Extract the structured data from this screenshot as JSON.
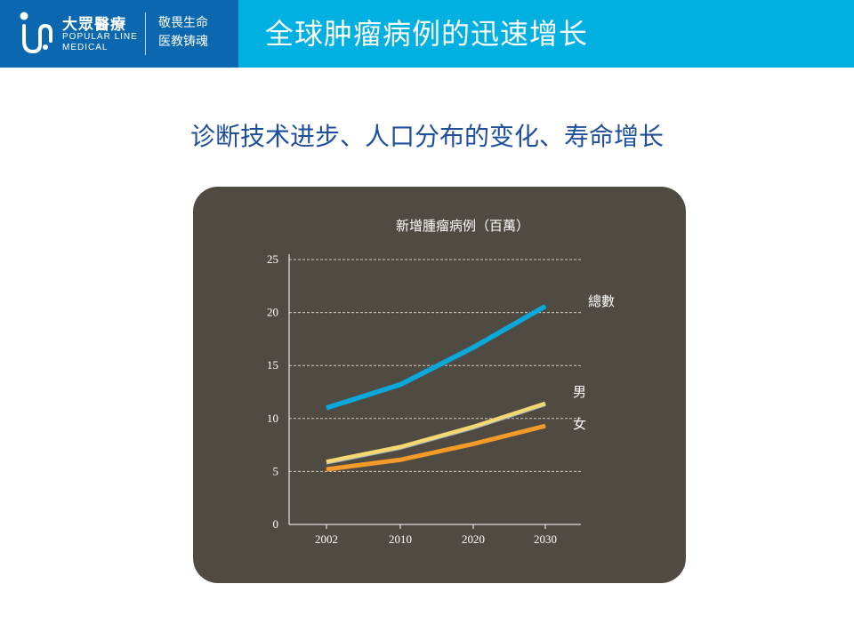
{
  "header": {
    "brand_cn": "大眾醫療",
    "brand_en_line1": "POPULAR LINE",
    "brand_en_line2": "MEDICAL",
    "motto_line1": "敬畏生命",
    "motto_line2": "医教铸魂",
    "title": "全球肿瘤病例的迅速增长",
    "logo_icon": "pl-logo-icon"
  },
  "subtitle": "诊断技术进步、人口分布的变化、寿命增长",
  "colors": {
    "header_bg": "#00b0e0",
    "logo_bg": "#0a67b0",
    "subtitle": "#1d4f9c",
    "chart_bg": "#4f4b43",
    "total": "#09a9dc",
    "male": "#f6d873",
    "female": "#f39a28"
  },
  "chart_data": {
    "type": "line",
    "title": "新增腫瘤病例（百萬）",
    "x": [
      "2002",
      "2010",
      "2020",
      "2030"
    ],
    "yticks": [
      "0",
      "5",
      "10",
      "15",
      "20",
      "25"
    ],
    "ylim": [
      0,
      25
    ],
    "grid": true,
    "series": [
      {
        "name": "總數",
        "values": [
          11.0,
          13.2,
          16.7,
          20.6
        ],
        "color": "#09a9dc"
      },
      {
        "name": "男",
        "values": [
          5.9,
          7.3,
          9.2,
          11.4
        ],
        "color": "#f6d873"
      },
      {
        "name": "女",
        "values": [
          5.2,
          6.1,
          7.6,
          9.3
        ],
        "color": "#f39a28"
      }
    ]
  }
}
